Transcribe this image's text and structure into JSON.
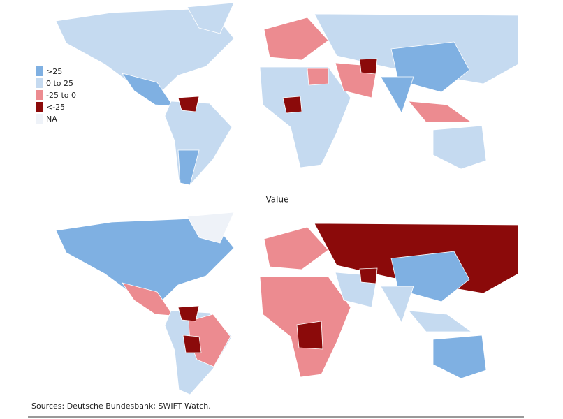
{
  "legend": {
    "items": [
      {
        "label": ">25",
        "color": "#7fb0e2"
      },
      {
        "label": "0 to 25",
        "color": "#c5daf0"
      },
      {
        "label": "-25 to 0",
        "color": "#ec8b90"
      },
      {
        "label": "<-25",
        "color": "#8b0a0a"
      },
      {
        "label": "NA",
        "color": "#eef2f8"
      }
    ]
  },
  "map_title": "Value",
  "source": "Sources: Deutsche Bundesbank; SWIFT Watch."
}
